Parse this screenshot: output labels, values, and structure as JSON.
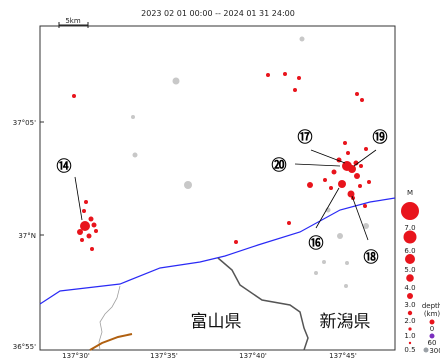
{
  "header": {
    "period": "2023 02 01 00:00  --  2024 01 31 24:00"
  },
  "scale_bar": {
    "label": "5km"
  },
  "lat_labels": [
    "37°05'",
    "37°N",
    "36°55'"
  ],
  "lon_labels": [
    "137°30'",
    "137°35'",
    "137°40'",
    "137°45'"
  ],
  "prefectures": {
    "toyama": "富山県",
    "niigata": "新潟県"
  },
  "callouts": [
    "⑭",
    "⑮",
    "⑯",
    "⑰",
    "⑱",
    "⑲",
    "⑳"
  ],
  "callout_numbers": {
    "n14": "⑭",
    "n16": "⑯",
    "n17": "⑰",
    "n18": "⑱",
    "n19": "⑲",
    "n20": "⑳"
  },
  "magnitude_legend": {
    "title": "M",
    "labels": [
      "7.0",
      "6.0",
      "5.0",
      "4.0",
      "3.0",
      "2.0",
      "1.0",
      "0.5"
    ],
    "marker_color": "#e8141c"
  },
  "depth_legend": {
    "title": "depth",
    "unit": "(km)",
    "labels": [
      "0",
      "60",
      "300"
    ],
    "colors": [
      "#e8141c",
      "#7b2fbf",
      "#9aa0a6"
    ]
  },
  "colors": {
    "quake_red": "#e8141c",
    "quake_gray": "#c8c8c8",
    "coastline": "#2a2af5",
    "border": "#555555",
    "river": "#9a9a9a",
    "road": "#b06010"
  }
}
